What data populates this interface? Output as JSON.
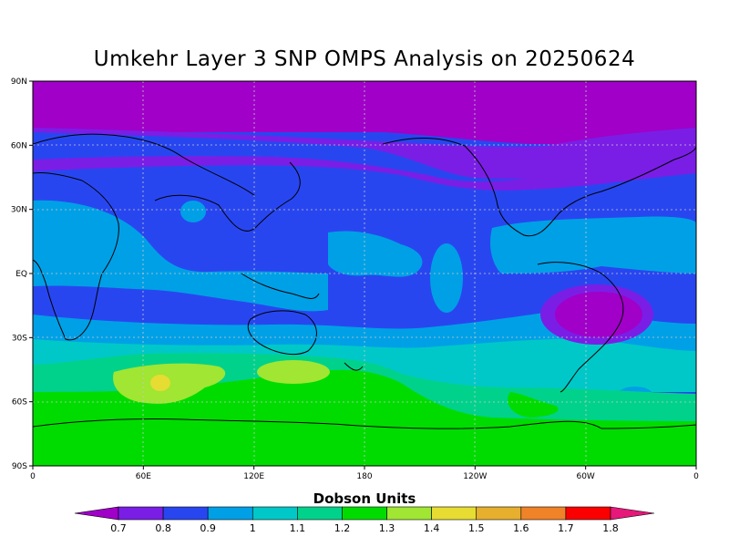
{
  "title": "Umkehr Layer 3 SNP OMPS Analysis on 20250624",
  "colorbar": {
    "title": "Dobson Units",
    "levels": [
      "0.7",
      "0.8",
      "0.9",
      "1",
      "1.1",
      "1.2",
      "1.3",
      "1.4",
      "1.5",
      "1.6",
      "1.7",
      "1.8"
    ],
    "colors": [
      "#a000c8",
      "#7a1ee6",
      "#2846f0",
      "#00a0e6",
      "#00c8c8",
      "#00d28c",
      "#00dc00",
      "#a0e632",
      "#e6dc32",
      "#e6af2d",
      "#f08228",
      "#fa0000",
      "#e6187a"
    ]
  },
  "axes": {
    "lat_ticks": [
      "90N",
      "60N",
      "30N",
      "EQ",
      "30S",
      "60S",
      "90S"
    ],
    "lon_ticks": [
      "0",
      "60E",
      "120E",
      "180",
      "120W",
      "60W",
      "0"
    ]
  },
  "map_data": {
    "projection": "equirectangular",
    "lon_range": [
      0,
      360
    ],
    "lat_range": [
      -90,
      90
    ],
    "field": "Umkehr layer 3 ozone",
    "date": "20250624",
    "grid": true
  }
}
